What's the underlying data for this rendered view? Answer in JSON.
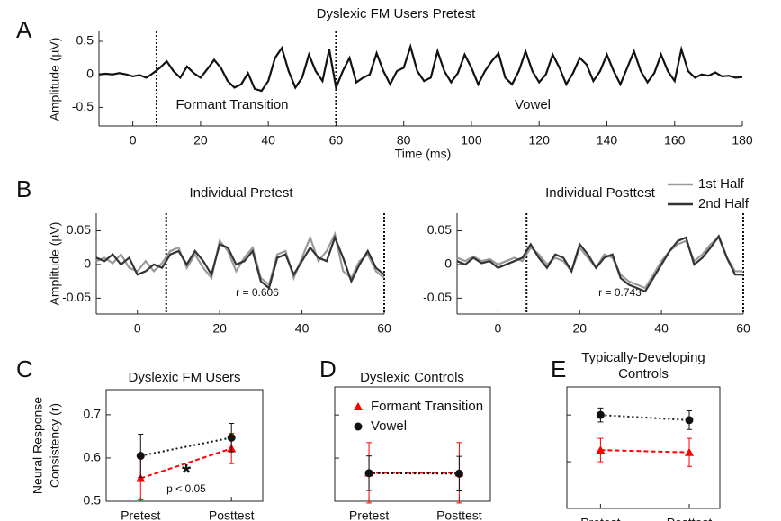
{
  "chart_data": [
    {
      "type": "line",
      "panel": "A",
      "title": "Dyslexic FM Users Pretest",
      "x_label": "Time (ms)",
      "y_label": "Amplitude (µV)",
      "xlim": [
        -10,
        180
      ],
      "ylim": [
        -0.78,
        0.65
      ],
      "xticks": [
        0,
        20,
        40,
        60,
        80,
        100,
        120,
        140,
        160,
        180
      ],
      "yticks": [
        -0.5,
        0,
        0.5
      ],
      "vlines": [
        7,
        60
      ],
      "annotations": [
        "Formant Transition",
        "Vowel"
      ],
      "x": [
        -10,
        -8,
        -6,
        -4,
        -2,
        0,
        2,
        4,
        6,
        8,
        10,
        12,
        14,
        16,
        18,
        20,
        22,
        24,
        26,
        28,
        30,
        32,
        34,
        36,
        38,
        40,
        42,
        44,
        46,
        48,
        50,
        52,
        54,
        56,
        58,
        60,
        62,
        64,
        66,
        68,
        70,
        72,
        74,
        76,
        78,
        80,
        82,
        84,
        86,
        88,
        90,
        92,
        94,
        96,
        98,
        100,
        102,
        104,
        106,
        108,
        110,
        112,
        114,
        116,
        118,
        120,
        122,
        124,
        126,
        128,
        130,
        132,
        134,
        136,
        138,
        140,
        142,
        144,
        146,
        148,
        150,
        152,
        154,
        156,
        158,
        160,
        162,
        164,
        166,
        168,
        170,
        172,
        174,
        176,
        178,
        180
      ],
      "series": [
        {
          "color": "#111111",
          "values": [
            0,
            0.01,
            0,
            0.02,
            0,
            -0.03,
            -0.01,
            -0.05,
            0.02,
            0.1,
            0.2,
            0.05,
            -0.05,
            0.12,
            0.02,
            -0.05,
            0.08,
            0.22,
            0.1,
            -0.1,
            -0.2,
            -0.15,
            0.02,
            -0.22,
            -0.25,
            -0.1,
            0.25,
            0.4,
            0.05,
            -0.2,
            -0.05,
            0.3,
            0.05,
            -0.1,
            0.38,
            -0.2,
            0.05,
            0.25,
            -0.12,
            -0.05,
            0,
            0.32,
            0.05,
            -0.15,
            0.05,
            0.1,
            0.42,
            0.05,
            -0.1,
            -0.05,
            0.35,
            0.05,
            -0.12,
            0.02,
            0.3,
            0.1,
            -0.15,
            0.05,
            0.2,
            0.32,
            -0.05,
            -0.15,
            0.05,
            0.35,
            0.05,
            -0.12,
            0,
            0.3,
            0.1,
            -0.15,
            0.02,
            0.25,
            0.15,
            -0.1,
            0.05,
            0.3,
            0.05,
            -0.15,
            0.1,
            0.35,
            0.05,
            -0.12,
            0.02,
            0.3,
            0.05,
            -0.1,
            0.38,
            0.05,
            -0.05,
            0,
            -0.02,
            0.03,
            -0.03,
            -0.02,
            -0.05,
            -0.04
          ]
        }
      ]
    },
    {
      "type": "line",
      "panel": "B",
      "title": "Individual Pretest",
      "y_label": "Amplitude (µV)",
      "xlim": [
        -10,
        60
      ],
      "ylim": [
        -0.0735,
        0.076
      ],
      "xticks": [
        0,
        20,
        40,
        60
      ],
      "yticks": [
        -0.05,
        0,
        0.05
      ],
      "vlines": [
        7,
        60
      ],
      "annotations": [
        "r = 0.606"
      ],
      "x": [
        -10,
        -8,
        -6,
        -4,
        -2,
        0,
        2,
        4,
        6,
        8,
        10,
        12,
        14,
        16,
        18,
        20,
        22,
        24,
        26,
        28,
        30,
        32,
        34,
        36,
        38,
        40,
        42,
        44,
        46,
        48,
        50,
        52,
        54,
        56,
        58,
        60
      ],
      "series": [
        {
          "name": "1st Half",
          "color": "#9a9a9a",
          "values": [
            0.005,
            0.01,
            0.002,
            0.015,
            -0.005,
            -0.01,
            0.005,
            -0.01,
            0.002,
            0.02,
            0.025,
            -0.005,
            0.015,
            -0.005,
            -0.02,
            0.035,
            0.02,
            -0.01,
            0.01,
            0.025,
            -0.02,
            -0.03,
            0.015,
            0.02,
            -0.02,
            0.01,
            0.04,
            0.005,
            0.02,
            0.045,
            -0.01,
            -0.02,
            0.005,
            0.015,
            -0.01,
            -0.02
          ]
        },
        {
          "name": "2nd Half",
          "color": "#333333",
          "values": [
            0.01,
            0.005,
            0.015,
            0,
            0.01,
            -0.015,
            -0.01,
            0,
            -0.005,
            0.015,
            0.02,
            0,
            0.02,
            0.005,
            -0.015,
            0.03,
            0.025,
            0,
            0.005,
            0.02,
            -0.025,
            -0.035,
            0.01,
            0.015,
            -0.015,
            0.005,
            0.025,
            0.01,
            0.005,
            0.04,
            0.01,
            -0.025,
            0,
            0.02,
            -0.005,
            -0.015
          ]
        }
      ]
    },
    {
      "type": "line",
      "title": "Individual Posttest",
      "xlim": [
        -10,
        60
      ],
      "ylim": [
        -0.0735,
        0.076
      ],
      "xticks": [
        0,
        20,
        40,
        60
      ],
      "yticks": [
        -0.05,
        0,
        0.05
      ],
      "vlines": [
        7,
        60
      ],
      "annotations": [
        "r = 0.743"
      ],
      "x": [
        -10,
        -8,
        -6,
        -4,
        -2,
        0,
        2,
        4,
        6,
        8,
        10,
        12,
        14,
        16,
        18,
        20,
        22,
        24,
        26,
        28,
        30,
        32,
        34,
        36,
        38,
        40,
        42,
        44,
        46,
        48,
        50,
        52,
        54,
        56,
        58,
        60
      ],
      "series": [
        {
          "color": "#9a9a9a",
          "values": [
            0.01,
            0.005,
            0.012,
            0.005,
            0.008,
            0,
            0.005,
            0.01,
            0.005,
            0.025,
            0.015,
            0,
            0.01,
            0.005,
            -0.01,
            0.025,
            0.01,
            -0.005,
            0.015,
            0.01,
            -0.015,
            -0.025,
            -0.03,
            -0.035,
            -0.015,
            0.005,
            0.02,
            0.03,
            0.035,
            0.005,
            0.015,
            0.03,
            0.04,
            0.01,
            -0.01,
            -0.01
          ]
        },
        {
          "color": "#333333",
          "values": [
            0.005,
            0,
            0.01,
            0.002,
            0.005,
            -0.005,
            0,
            0.005,
            0.01,
            0.03,
            0.01,
            -0.005,
            0.015,
            0.01,
            -0.01,
            0.03,
            0.015,
            -0.005,
            0.01,
            0.015,
            -0.02,
            -0.03,
            -0.035,
            -0.04,
            -0.02,
            0,
            0.02,
            0.035,
            0.04,
            0,
            0.01,
            0.025,
            0.042,
            0.01,
            -0.015,
            -0.015
          ]
        }
      ]
    },
    {
      "type": "line",
      "panel": "C",
      "title": "Dyslexic FM Users",
      "y_label": [
        "Neural Response",
        "Consistency (r)"
      ],
      "ylim": [
        0.5,
        0.758
      ],
      "yticks": [
        0.5,
        0.6,
        0.7
      ],
      "categories": [
        "Pretest",
        "Posttest"
      ],
      "annotations": [
        "*",
        "p < 0.05"
      ],
      "series": [
        {
          "color": "#ff0000",
          "marker": "triangle",
          "dash": "dashed",
          "values": [
            0.553,
            0.622
          ],
          "errors": [
            0.05,
            0.035
          ]
        },
        {
          "color": "#111111",
          "marker": "circle",
          "dash": "dotted",
          "values": [
            0.605,
            0.647
          ],
          "errors": [
            0.05,
            0.033
          ]
        }
      ]
    },
    {
      "type": "line",
      "panel": "D",
      "title": "Dyslexic Controls",
      "ylim": [
        0.5,
        0.765
      ],
      "yticks": [
        0.6,
        0.7
      ],
      "ytick_labels": false,
      "categories": [
        "Pretest",
        "Posttest"
      ],
      "series": [
        {
          "name": "Formant Transition",
          "color": "#ff0000",
          "marker": "triangle",
          "dash": "dashed",
          "values": [
            0.566,
            0.566
          ],
          "errors": [
            0.07,
            0.07
          ]
        },
        {
          "name": "Vowel",
          "color": "#111111",
          "marker": "circle",
          "dash": "dotted",
          "values": [
            0.565,
            0.564
          ],
          "errors": [
            0.04,
            0.04
          ]
        }
      ]
    },
    {
      "type": "line",
      "panel": "E",
      "title": [
        "Typically-Developing",
        "Controls"
      ],
      "ylim": [
        0.5,
        0.76
      ],
      "yticks": [
        0.6,
        0.7
      ],
      "ytick_labels": false,
      "categories": [
        "Pretest",
        "Posttest"
      ],
      "series": [
        {
          "color": "#ff0000",
          "marker": "triangle",
          "dash": "dashed",
          "values": [
            0.625,
            0.62
          ],
          "errors": [
            0.025,
            0.03
          ]
        },
        {
          "color": "#111111",
          "marker": "circle",
          "dash": "dotted",
          "values": [
            0.7,
            0.689
          ],
          "errors": [
            0.015,
            0.02
          ]
        }
      ]
    }
  ]
}
